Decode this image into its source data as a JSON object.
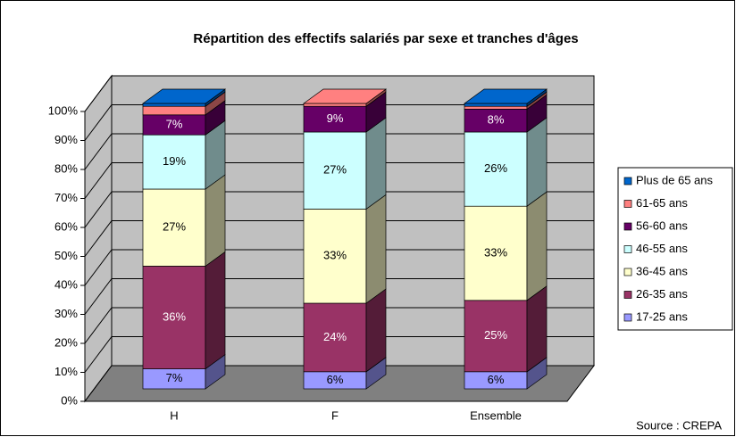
{
  "chart_data": {
    "type": "stacked_bar_3d",
    "title": "Répartition des effectifs salariés par sexe et tranches d'âges",
    "categories": [
      "H",
      "F",
      "Ensemble"
    ],
    "series": [
      {
        "name": "17-25 ans",
        "color": "#9999ff",
        "values": [
          7,
          6,
          6
        ],
        "value_labels": [
          "7%",
          "6%",
          "6%"
        ]
      },
      {
        "name": "26-35 ans",
        "color": "#993366",
        "values": [
          36,
          24,
          25
        ],
        "value_labels": [
          "36%",
          "24%",
          "25%"
        ]
      },
      {
        "name": "36-45 ans",
        "color": "#ffffcc",
        "values": [
          27,
          33,
          33
        ],
        "value_labels": [
          "27%",
          "33%",
          "33%"
        ]
      },
      {
        "name": "46-55 ans",
        "color": "#ccffff",
        "values": [
          19,
          27,
          26
        ],
        "value_labels": [
          "19%",
          "27%",
          "26%"
        ]
      },
      {
        "name": "56-60 ans",
        "color": "#660066",
        "values": [
          7,
          9,
          8
        ],
        "value_labels": [
          "7%",
          "9%",
          "8%"
        ]
      },
      {
        "name": "61-65 ans",
        "color": "#ff8080",
        "values": [
          3,
          1,
          1
        ]
      },
      {
        "name": "Plus de 65 ans",
        "color": "#0066cc",
        "values": [
          1,
          0,
          1
        ]
      }
    ],
    "ylim": [
      0,
      100
    ],
    "yticks": [
      {
        "value": 0,
        "label": "0%"
      },
      {
        "value": 10,
        "label": "10%"
      },
      {
        "value": 20,
        "label": "20%"
      },
      {
        "value": 30,
        "label": "30%"
      },
      {
        "value": 40,
        "label": "40%"
      },
      {
        "value": 50,
        "label": "50%"
      },
      {
        "value": 60,
        "label": "60%"
      },
      {
        "value": 70,
        "label": "70%"
      },
      {
        "value": 80,
        "label": "80%"
      },
      {
        "value": 90,
        "label": "90%"
      },
      {
        "value": 100,
        "label": "100%"
      }
    ],
    "grid": true,
    "legend": "right",
    "source": "Source : CREPA"
  }
}
